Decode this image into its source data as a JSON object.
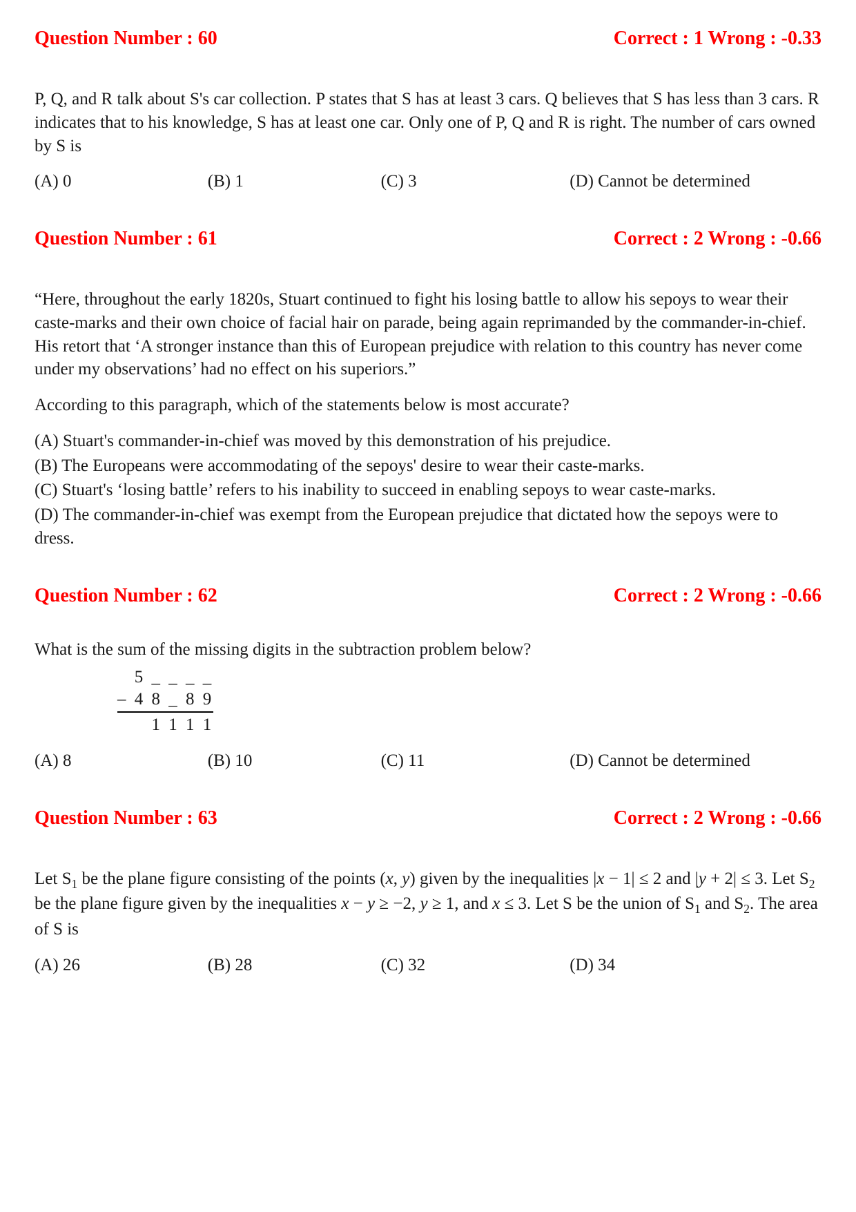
{
  "colors": {
    "heading": "#ff0000",
    "body_text": "#1a1a1a",
    "background": "#ffffff"
  },
  "typography": {
    "heading_fontsize_pt": 21,
    "body_fontsize_pt": 19,
    "font_family": "Times New Roman"
  },
  "questions": [
    {
      "number_label": "Question Number : 60",
      "marks_label": "Correct : 1  Wrong : -0.33",
      "stem_paragraphs": [
        "P, Q, and R talk about S's car collection. P states that S has at least 3 cars. Q believes that S has less than 3 cars. R indicates that to his knowledge, S has at least one car. Only one of P, Q and R is right. The number of cars owned by S is"
      ],
      "option_layout": "row",
      "options": {
        "a": "(A) 0",
        "b": "(B) 1",
        "c": "(C)  3",
        "d": "(D)  Cannot be determined"
      }
    },
    {
      "number_label": "Question Number : 61",
      "marks_label": "Correct : 2  Wrong : -0.66",
      "stem_paragraphs": [
        "“Here, throughout the early 1820s, Stuart continued to fight his losing battle to allow his sepoys to wear their caste-marks and their own choice of facial hair on parade, being again reprimanded by the commander-in-chief. His retort that ‘A stronger instance than this of European prejudice with relation to this country has never come under my observations’ had no effect on his superiors.”",
        "According to this paragraph, which of the statements below is most accurate?"
      ],
      "option_layout": "stack",
      "options": {
        "a": "(A) Stuart's commander-in-chief was moved by this demonstration of his prejudice.",
        "b": "(B) The Europeans were accommodating of the sepoys' desire to wear their caste-marks.",
        "c": "(C) Stuart's ‘losing battle’ refers to his inability to succeed in enabling sepoys to wear caste-marks.",
        "d": "(D) The commander-in-chief was exempt from the European prejudice that dictated how the sepoys were to dress."
      }
    },
    {
      "number_label": "Question Number : 62",
      "marks_label": "Correct : 2  Wrong : -0.66",
      "stem_paragraphs": [
        "What is the sum of the missing digits in the subtraction problem below?"
      ],
      "subtraction": {
        "line1": "  5 _ _ _ _",
        "line2": "– 4 8 _ 8 9",
        "line3": "  1 1 1 1"
      },
      "option_layout": "row",
      "options": {
        "a": "(A) 8",
        "b": "(B) 10",
        "c": "(C)  11",
        "d": "(D)  Cannot be determined"
      }
    },
    {
      "number_label": "Question Number : 63",
      "marks_label": "Correct : 2  Wrong : -0.66",
      "stem_html": "Let S<sub>1</sub> be the plane figure consisting of the points (<span class=\"math-italic\">x</span>, <span class=\"math-italic\">y</span>) given by the inequalities |<span class=\"math-italic\">x</span> − 1| ≤ 2 and |<span class=\"math-italic\">y</span> + 2| ≤ 3. Let S<sub>2</sub> be the plane figure given by the inequalities  <span class=\"math-italic\">x</span> − <span class=\"math-italic\">y</span> ≥ −2, <span class=\"math-italic\">y</span> ≥ 1, and  <span class=\"math-italic\">x</span> ≤ 3. Let S be the union of S<sub>1</sub> and S<sub>2</sub>. The area of S is",
      "option_layout": "row",
      "options": {
        "a": "(A) 26",
        "b": "(B) 28",
        "c": "(C)  32",
        "d": "(D)  34"
      }
    }
  ]
}
